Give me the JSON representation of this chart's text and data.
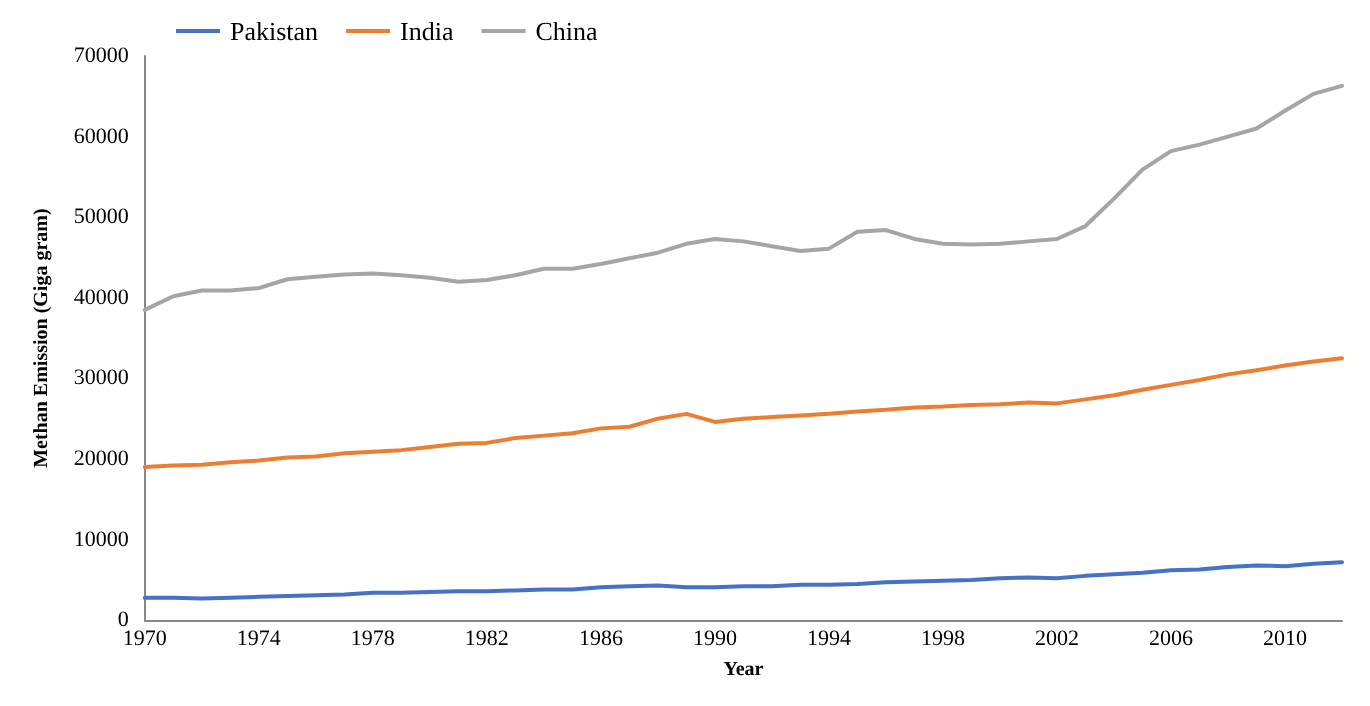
{
  "chart_data": {
    "type": "line",
    "xlabel": "Year",
    "ylabel": "Methan Emission (Giga gram)",
    "categories": [
      "1970",
      null,
      null,
      null,
      "1974",
      null,
      null,
      null,
      "1978",
      null,
      null,
      null,
      "1982",
      null,
      null,
      null,
      "1986",
      null,
      null,
      null,
      "1990",
      null,
      null,
      null,
      "1994",
      null,
      null,
      null,
      "1998",
      null,
      null,
      null,
      "2002",
      null,
      null,
      null,
      "2006",
      null,
      null,
      null,
      "2010",
      null,
      null
    ],
    "series": [
      {
        "name": "Pakistan",
        "color": "#4472c4",
        "values": [
          2800,
          2800,
          2700,
          2800,
          2900,
          3000,
          3100,
          3200,
          3400,
          3400,
          3500,
          3600,
          3600,
          3700,
          3800,
          3800,
          4100,
          4200,
          4300,
          4100,
          4100,
          4200,
          4200,
          4400,
          4400,
          4500,
          4700,
          4800,
          4900,
          5000,
          5200,
          5300,
          5200,
          5500,
          5700,
          5900,
          6200,
          6300,
          6600,
          6800,
          6700,
          7000,
          7200
        ]
      },
      {
        "name": "India",
        "color": "#ed7d31",
        "values": [
          19000,
          19200,
          19300,
          19600,
          19800,
          20200,
          20300,
          20700,
          20900,
          21100,
          21500,
          21900,
          22000,
          22600,
          22900,
          23200,
          23800,
          24000,
          25000,
          25600,
          24600,
          25000,
          25200,
          25400,
          25600,
          25900,
          26100,
          26400,
          26500,
          26700,
          26800,
          27000,
          26900,
          27400,
          27900,
          28600,
          29200,
          29800,
          30500,
          31000,
          31600,
          32100,
          32500
        ]
      },
      {
        "name": "China",
        "color": "#a5a5a5",
        "values": [
          38500,
          40200,
          40900,
          40900,
          41200,
          42300,
          42600,
          42900,
          43000,
          42800,
          42500,
          42000,
          42200,
          42800,
          43600,
          43600,
          44200,
          44900,
          45600,
          46700,
          47300,
          47000,
          46400,
          45800,
          46100,
          48200,
          48400,
          47300,
          46700,
          46600,
          46700,
          47000,
          47300,
          48900,
          52300,
          55900,
          58200,
          59000,
          60000,
          61000,
          63200,
          65300,
          66300
        ]
      }
    ],
    "ylim": [
      0,
      70000
    ],
    "yticks": [
      0,
      10000,
      20000,
      30000,
      40000,
      50000,
      60000,
      70000
    ],
    "grid": false,
    "legend": "top left",
    "marker": "none",
    "line_style": "solid"
  }
}
